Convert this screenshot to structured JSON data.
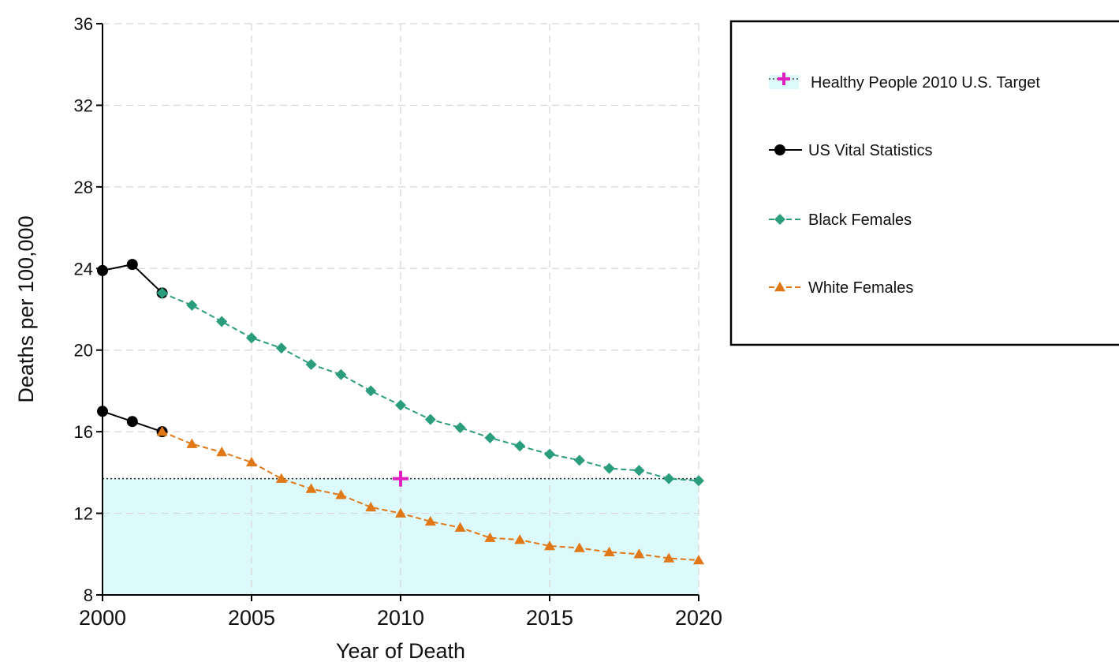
{
  "chart_data": {
    "type": "line",
    "title": "",
    "xlabel": "Year of Death",
    "ylabel": "Deaths per 100,000",
    "xlim": [
      2000,
      2020
    ],
    "ylim": [
      8,
      36
    ],
    "x_ticks": [
      2000,
      2005,
      2010,
      2015,
      2020
    ],
    "y_ticks": [
      8,
      12,
      16,
      20,
      24,
      28,
      32,
      36
    ],
    "grid": true,
    "legend_position": "right",
    "target": {
      "name": "Healthy People 2010 U.S. Target",
      "year": 2010,
      "value": 13.7,
      "color": "#e020c0",
      "fill_color": "#dcfafc"
    },
    "series": [
      {
        "name": "US Vital Statistics",
        "marker": "circle",
        "color": "#000000",
        "dashed": false,
        "segments": [
          {
            "x": [
              2000,
              2001,
              2002
            ],
            "y": [
              23.9,
              24.2,
              22.8
            ]
          },
          {
            "x": [
              2000,
              2001,
              2002
            ],
            "y": [
              17.0,
              16.5,
              16.0
            ]
          }
        ]
      },
      {
        "name": "Black Females",
        "marker": "diamond",
        "color": "#2a9d7c",
        "dashed": true,
        "x": [
          2002,
          2003,
          2004,
          2005,
          2006,
          2007,
          2008,
          2009,
          2010,
          2011,
          2012,
          2013,
          2014,
          2015,
          2016,
          2017,
          2018,
          2019,
          2020
        ],
        "y": [
          22.8,
          22.2,
          21.4,
          20.6,
          20.1,
          19.3,
          18.8,
          18.0,
          17.3,
          16.6,
          16.2,
          15.7,
          15.3,
          14.9,
          14.6,
          14.2,
          14.1,
          13.7,
          13.6
        ]
      },
      {
        "name": "White Females",
        "marker": "triangle",
        "color": "#e07818",
        "dashed": true,
        "x": [
          2002,
          2003,
          2004,
          2005,
          2006,
          2007,
          2008,
          2009,
          2010,
          2011,
          2012,
          2013,
          2014,
          2015,
          2016,
          2017,
          2018,
          2019,
          2020
        ],
        "y": [
          16.0,
          15.4,
          15.0,
          14.5,
          13.7,
          13.2,
          12.9,
          12.3,
          12.0,
          11.6,
          11.3,
          10.8,
          10.7,
          10.4,
          10.3,
          10.1,
          10.0,
          9.8,
          9.7
        ]
      }
    ]
  }
}
